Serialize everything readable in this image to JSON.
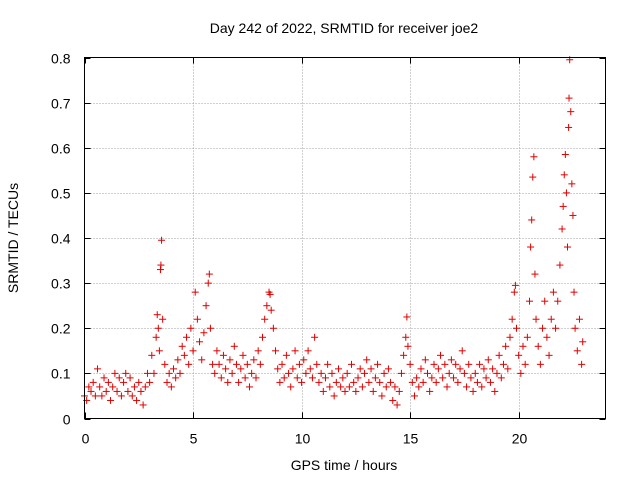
{
  "chart_data": {
    "type": "scatter",
    "title": "Day 242 of 2022, SRMTID for receiver joe2",
    "xlabel": "GPS time / hours",
    "ylabel": "SRMTID / TECUs",
    "xlim": [
      0,
      24
    ],
    "ylim": [
      0,
      0.8
    ],
    "xticks": [
      0,
      5,
      10,
      15,
      20
    ],
    "xtick_labels": [
      "0",
      "5",
      "10",
      "15",
      "20"
    ],
    "yticks": [
      0,
      0.1,
      0.2,
      0.3,
      0.4,
      0.5,
      0.6,
      0.7,
      0.8
    ],
    "ytick_labels": [
      "0",
      "0.1",
      "0.2",
      "0.3",
      "0.4",
      "0.5",
      "0.6",
      "0.7",
      "0.8"
    ],
    "grid": true,
    "marker": "+",
    "color": "#e00000",
    "series": [
      {
        "name": "SRMTID",
        "points": [
          [
            0.0,
            0.05
          ],
          [
            0.1,
            0.04
          ],
          [
            0.2,
            0.07
          ],
          [
            0.3,
            0.06
          ],
          [
            0.4,
            0.08
          ],
          [
            0.5,
            0.05
          ],
          [
            0.6,
            0.11
          ],
          [
            0.7,
            0.07
          ],
          [
            0.8,
            0.05
          ],
          [
            0.9,
            0.09
          ],
          [
            1.0,
            0.06
          ],
          [
            1.1,
            0.08
          ],
          [
            1.2,
            0.04
          ],
          [
            1.3,
            0.07
          ],
          [
            1.4,
            0.1
          ],
          [
            1.5,
            0.06
          ],
          [
            1.6,
            0.09
          ],
          [
            1.7,
            0.05
          ],
          [
            1.8,
            0.08
          ],
          [
            1.9,
            0.1
          ],
          [
            2.0,
            0.06
          ],
          [
            2.1,
            0.09
          ],
          [
            2.2,
            0.05
          ],
          [
            2.3,
            0.07
          ],
          [
            2.4,
            0.04
          ],
          [
            2.5,
            0.08
          ],
          [
            2.6,
            0.06
          ],
          [
            2.7,
            0.03
          ],
          [
            2.8,
            0.07
          ],
          [
            2.9,
            0.1
          ],
          [
            3.0,
            0.08
          ],
          [
            3.1,
            0.14
          ],
          [
            3.2,
            0.1
          ],
          [
            3.3,
            0.18
          ],
          [
            3.35,
            0.23
          ],
          [
            3.4,
            0.2
          ],
          [
            3.45,
            0.15
          ],
          [
            3.5,
            0.33
          ],
          [
            3.52,
            0.34
          ],
          [
            3.55,
            0.395
          ],
          [
            3.6,
            0.22
          ],
          [
            3.7,
            0.12
          ],
          [
            3.8,
            0.08
          ],
          [
            3.9,
            0.1
          ],
          [
            4.0,
            0.07
          ],
          [
            4.1,
            0.11
          ],
          [
            4.2,
            0.09
          ],
          [
            4.3,
            0.13
          ],
          [
            4.4,
            0.1
          ],
          [
            4.5,
            0.16
          ],
          [
            4.6,
            0.14
          ],
          [
            4.7,
            0.18
          ],
          [
            4.8,
            0.12
          ],
          [
            4.9,
            0.2
          ],
          [
            5.0,
            0.15
          ],
          [
            5.1,
            0.28
          ],
          [
            5.2,
            0.22
          ],
          [
            5.3,
            0.17
          ],
          [
            5.4,
            0.13
          ],
          [
            5.5,
            0.19
          ],
          [
            5.6,
            0.25
          ],
          [
            5.7,
            0.3
          ],
          [
            5.75,
            0.32
          ],
          [
            5.8,
            0.2
          ],
          [
            5.9,
            0.12
          ],
          [
            6.0,
            0.1
          ],
          [
            6.1,
            0.15
          ],
          [
            6.2,
            0.12
          ],
          [
            6.3,
            0.09
          ],
          [
            6.4,
            0.14
          ],
          [
            6.5,
            0.11
          ],
          [
            6.6,
            0.08
          ],
          [
            6.7,
            0.13
          ],
          [
            6.8,
            0.1
          ],
          [
            6.9,
            0.16
          ],
          [
            7.0,
            0.12
          ],
          [
            7.1,
            0.08
          ],
          [
            7.2,
            0.11
          ],
          [
            7.3,
            0.14
          ],
          [
            7.4,
            0.09
          ],
          [
            7.5,
            0.12
          ],
          [
            7.6,
            0.07
          ],
          [
            7.7,
            0.1
          ],
          [
            7.8,
            0.13
          ],
          [
            7.9,
            0.09
          ],
          [
            8.0,
            0.15
          ],
          [
            8.1,
            0.12
          ],
          [
            8.2,
            0.18
          ],
          [
            8.3,
            0.22
          ],
          [
            8.4,
            0.25
          ],
          [
            8.5,
            0.28
          ],
          [
            8.55,
            0.275
          ],
          [
            8.6,
            0.24
          ],
          [
            8.7,
            0.2
          ],
          [
            8.8,
            0.15
          ],
          [
            8.9,
            0.11
          ],
          [
            9.0,
            0.08
          ],
          [
            9.1,
            0.12
          ],
          [
            9.2,
            0.09
          ],
          [
            9.3,
            0.14
          ],
          [
            9.4,
            0.1
          ],
          [
            9.5,
            0.07
          ],
          [
            9.6,
            0.11
          ],
          [
            9.7,
            0.15
          ],
          [
            9.8,
            0.09
          ],
          [
            9.9,
            0.12
          ],
          [
            10.0,
            0.08
          ],
          [
            10.1,
            0.13
          ],
          [
            10.2,
            0.1
          ],
          [
            10.3,
            0.15
          ],
          [
            10.4,
            0.11
          ],
          [
            10.5,
            0.09
          ],
          [
            10.6,
            0.18
          ],
          [
            10.7,
            0.12
          ],
          [
            10.8,
            0.08
          ],
          [
            10.9,
            0.1
          ],
          [
            11.0,
            0.06
          ],
          [
            11.1,
            0.09
          ],
          [
            11.2,
            0.12
          ],
          [
            11.3,
            0.07
          ],
          [
            11.4,
            0.1
          ],
          [
            11.5,
            0.05
          ],
          [
            11.6,
            0.08
          ],
          [
            11.7,
            0.11
          ],
          [
            11.8,
            0.07
          ],
          [
            11.9,
            0.09
          ],
          [
            12.0,
            0.06
          ],
          [
            12.1,
            0.1
          ],
          [
            12.2,
            0.07
          ],
          [
            12.3,
            0.12
          ],
          [
            12.4,
            0.08
          ],
          [
            12.5,
            0.06
          ],
          [
            12.6,
            0.09
          ],
          [
            12.7,
            0.11
          ],
          [
            12.8,
            0.07
          ],
          [
            12.9,
            0.1
          ],
          [
            13.0,
            0.13
          ],
          [
            13.1,
            0.08
          ],
          [
            13.2,
            0.11
          ],
          [
            13.3,
            0.06
          ],
          [
            13.4,
            0.09
          ],
          [
            13.5,
            0.12
          ],
          [
            13.6,
            0.08
          ],
          [
            13.7,
            0.05
          ],
          [
            13.8,
            0.1
          ],
          [
            13.9,
            0.07
          ],
          [
            14.0,
            0.11
          ],
          [
            14.1,
            0.08
          ],
          [
            14.2,
            0.04
          ],
          [
            14.3,
            0.07
          ],
          [
            14.4,
            0.03
          ],
          [
            14.5,
            0.06
          ],
          [
            14.6,
            0.1
          ],
          [
            14.7,
            0.14
          ],
          [
            14.8,
            0.18
          ],
          [
            14.85,
            0.225
          ],
          [
            14.9,
            0.16
          ],
          [
            15.0,
            0.12
          ],
          [
            15.1,
            0.08
          ],
          [
            15.2,
            0.05
          ],
          [
            15.3,
            0.09
          ],
          [
            15.4,
            0.07
          ],
          [
            15.5,
            0.11
          ],
          [
            15.6,
            0.08
          ],
          [
            15.7,
            0.13
          ],
          [
            15.8,
            0.1
          ],
          [
            15.9,
            0.06
          ],
          [
            16.0,
            0.09
          ],
          [
            16.1,
            0.12
          ],
          [
            16.2,
            0.08
          ],
          [
            16.3,
            0.11
          ],
          [
            16.4,
            0.14
          ],
          [
            16.5,
            0.09
          ],
          [
            16.6,
            0.12
          ],
          [
            16.7,
            0.07
          ],
          [
            16.8,
            0.1
          ],
          [
            16.9,
            0.13
          ],
          [
            17.0,
            0.09
          ],
          [
            17.1,
            0.12
          ],
          [
            17.2,
            0.08
          ],
          [
            17.3,
            0.11
          ],
          [
            17.4,
            0.15
          ],
          [
            17.5,
            0.1
          ],
          [
            17.6,
            0.07
          ],
          [
            17.7,
            0.12
          ],
          [
            17.8,
            0.09
          ],
          [
            17.9,
            0.06
          ],
          [
            18.0,
            0.1
          ],
          [
            18.1,
            0.08
          ],
          [
            18.2,
            0.12
          ],
          [
            18.3,
            0.07
          ],
          [
            18.4,
            0.11
          ],
          [
            18.5,
            0.09
          ],
          [
            18.6,
            0.13
          ],
          [
            18.7,
            0.08
          ],
          [
            18.8,
            0.11
          ],
          [
            18.9,
            0.06
          ],
          [
            19.0,
            0.1
          ],
          [
            19.1,
            0.14
          ],
          [
            19.2,
            0.09
          ],
          [
            19.3,
            0.12
          ],
          [
            19.4,
            0.16
          ],
          [
            19.5,
            0.11
          ],
          [
            19.6,
            0.18
          ],
          [
            19.7,
            0.22
          ],
          [
            19.8,
            0.28
          ],
          [
            19.85,
            0.295
          ],
          [
            19.9,
            0.2
          ],
          [
            20.0,
            0.14
          ],
          [
            20.1,
            0.1
          ],
          [
            20.2,
            0.16
          ],
          [
            20.3,
            0.12
          ],
          [
            20.4,
            0.18
          ],
          [
            20.5,
            0.26
          ],
          [
            20.55,
            0.38
          ],
          [
            20.6,
            0.44
          ],
          [
            20.65,
            0.535
          ],
          [
            20.7,
            0.58
          ],
          [
            20.75,
            0.32
          ],
          [
            20.8,
            0.22
          ],
          [
            20.9,
            0.16
          ],
          [
            21.0,
            0.12
          ],
          [
            21.1,
            0.2
          ],
          [
            21.2,
            0.26
          ],
          [
            21.3,
            0.18
          ],
          [
            21.4,
            0.14
          ],
          [
            21.5,
            0.22
          ],
          [
            21.6,
            0.28
          ],
          [
            21.7,
            0.2
          ],
          [
            21.8,
            0.26
          ],
          [
            21.9,
            0.34
          ],
          [
            22.0,
            0.42
          ],
          [
            22.05,
            0.47
          ],
          [
            22.1,
            0.54
          ],
          [
            22.15,
            0.585
          ],
          [
            22.2,
            0.5
          ],
          [
            22.25,
            0.38
          ],
          [
            22.3,
            0.645
          ],
          [
            22.32,
            0.71
          ],
          [
            22.35,
            0.795
          ],
          [
            22.4,
            0.68
          ],
          [
            22.45,
            0.52
          ],
          [
            22.5,
            0.45
          ],
          [
            22.55,
            0.28
          ],
          [
            22.6,
            0.2
          ],
          [
            22.7,
            0.15
          ],
          [
            22.8,
            0.22
          ],
          [
            22.9,
            0.12
          ],
          [
            22.95,
            0.17
          ]
        ]
      }
    ]
  }
}
